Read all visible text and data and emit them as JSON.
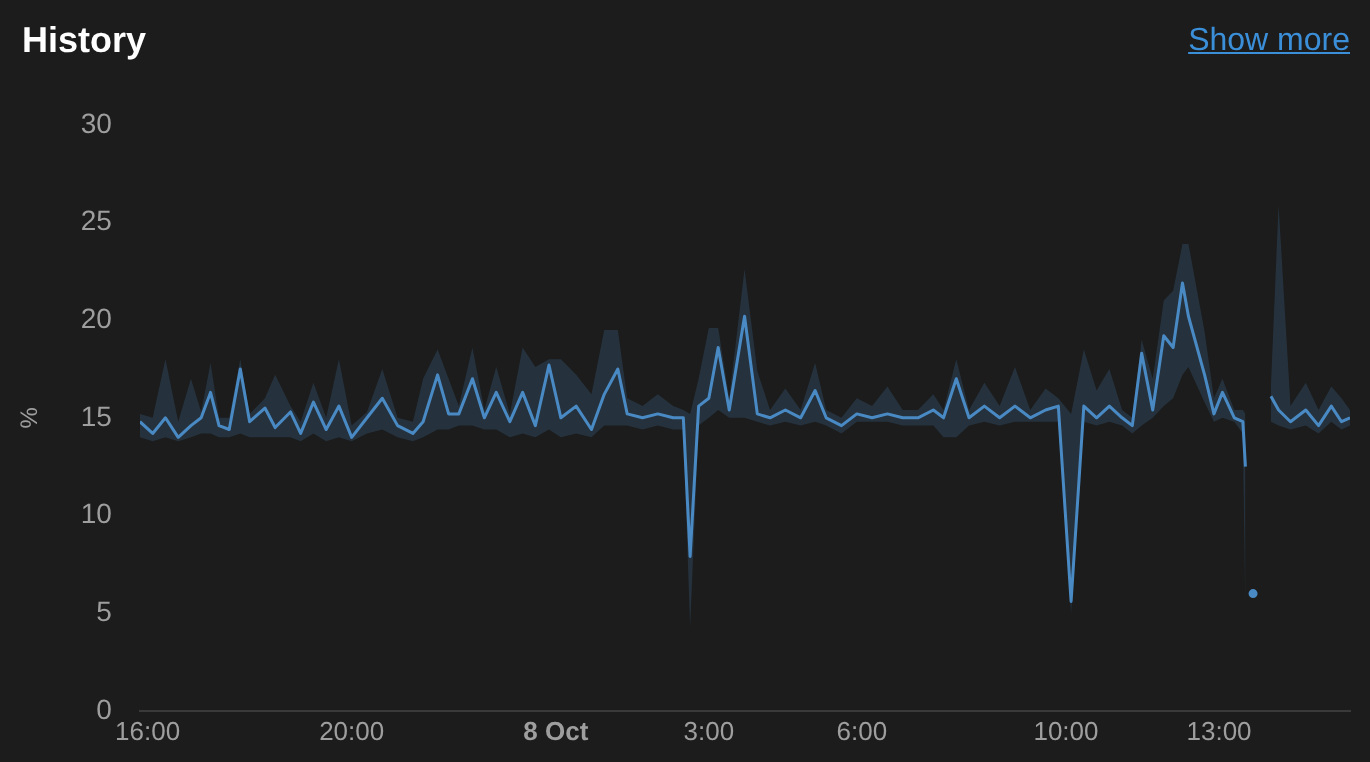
{
  "chart_data": {
    "type": "line",
    "title": "History",
    "ylabel": "%",
    "annotations": [
      "Show more"
    ],
    "x": [
      "--10-07T15:51",
      "--10-07T16:06",
      "--10-07T16:21",
      "--10-07T16:36",
      "--10-07T16:51",
      "--10-07T17:03",
      "--10-07T17:14",
      "--10-07T17:24",
      "--10-07T17:36",
      "--10-07T17:49",
      "--10-07T18:00",
      "--10-07T18:18",
      "--10-07T18:30",
      "--10-07T18:48",
      "--10-07T19:00",
      "--10-07T19:15",
      "--10-07T19:30",
      "--10-07T19:45",
      "--10-07T20:00",
      "--10-07T20:18",
      "--10-07T20:36",
      "--10-07T20:54",
      "--10-07T21:12",
      "--10-07T21:24",
      "--10-07T21:41",
      "--10-07T21:54",
      "--10-07T22:06",
      "--10-07T22:22",
      "--10-07T22:36",
      "--10-07T22:50",
      "--10-07T23:06",
      "--10-07T23:21",
      "--10-07T23:36",
      "--10-07T23:52",
      "--10-08T00:06",
      "--10-08T00:24",
      "--10-08T00:42",
      "--10-08T00:57",
      "--10-08T01:13",
      "--10-08T01:24",
      "--10-08T01:42",
      "--10-08T02:00",
      "--10-08T02:18",
      "--10-08T02:30",
      "--10-08T02:38",
      "--10-08T02:48",
      "--10-08T03:00",
      "--10-08T03:11",
      "--10-08T03:24",
      "--10-08T03:42",
      "--10-08T03:57",
      "--10-08T04:12",
      "--10-08T04:30",
      "--10-08T04:48",
      "--10-08T05:05",
      "--10-08T05:18",
      "--10-08T05:36",
      "--10-08T05:54",
      "--10-08T06:12",
      "--10-08T06:30",
      "--10-08T06:48",
      "--10-08T07:06",
      "--10-08T07:24",
      "--10-08T07:36",
      "--10-08T07:51",
      "--10-08T08:06",
      "--10-08T08:24",
      "--10-08T08:42",
      "--10-08T09:00",
      "--10-08T09:18",
      "--10-08T09:36",
      "--10-08T09:51",
      "--10-08T10:06",
      "--10-08T10:21",
      "--10-08T10:36",
      "--10-08T10:51",
      "--10-08T11:06",
      "--10-08T11:18",
      "--10-08T11:29",
      "--10-08T11:42",
      "--10-08T11:55",
      "--10-08T12:06",
      "--10-08T12:17",
      "--10-08T12:24",
      "--10-08T12:43",
      "--10-08T12:54",
      "--10-08T13:04",
      "--10-08T13:18",
      "--10-08T13:28",
      "--10-08T13:31",
      "--10-08T13:36",
      "--10-08T13:40"
    ],
    "series": [
      {
        "color": "#4a8ac4",
        "values": [
          14.8,
          14.2,
          15.0,
          14.0,
          14.6,
          15.0,
          16.3,
          14.6,
          14.4,
          17.5,
          14.8,
          15.5,
          14.5,
          15.3,
          14.2,
          15.8,
          14.4,
          15.6,
          14.0,
          15.0,
          16.0,
          14.6,
          14.2,
          14.8,
          17.2,
          15.2,
          15.2,
          17.0,
          15.0,
          16.3,
          14.8,
          16.3,
          14.6,
          17.7,
          15.0,
          15.6,
          14.4,
          16.2,
          17.5,
          15.2,
          15.0,
          15.2,
          15.0,
          15.0,
          7.9,
          15.6,
          16.0,
          18.6,
          15.4,
          20.2,
          15.2,
          15.0,
          15.4,
          15.0,
          16.4,
          15.0,
          14.6,
          15.2,
          15.0,
          15.2,
          15.0,
          15.0,
          15.4,
          15.0,
          17.0,
          15.0,
          15.6,
          15.0,
          15.6,
          15.0,
          15.4,
          15.6,
          5.6,
          15.6,
          15.0,
          15.6,
          15.0,
          14.6,
          18.3,
          15.4,
          19.2,
          18.6,
          21.9,
          20.2,
          17.2,
          15.2,
          16.3,
          15.0,
          14.8,
          12.5,
          null,
          6.0
        ],
        "lower": [
          14.0,
          13.8,
          14.0,
          13.8,
          14.0,
          14.2,
          14.2,
          14.0,
          14.0,
          14.2,
          14.0,
          14.0,
          14.0,
          14.0,
          13.8,
          14.2,
          13.8,
          14.0,
          13.8,
          14.2,
          14.4,
          14.0,
          13.8,
          14.0,
          14.4,
          14.4,
          14.6,
          14.6,
          14.4,
          14.4,
          14.0,
          14.2,
          14.0,
          14.4,
          14.0,
          14.2,
          14.0,
          14.6,
          14.6,
          14.6,
          14.4,
          14.6,
          14.4,
          14.4,
          4.3,
          14.6,
          15.0,
          15.4,
          15.0,
          15.0,
          14.8,
          14.6,
          14.8,
          14.6,
          14.8,
          14.6,
          14.2,
          14.8,
          14.8,
          14.8,
          14.6,
          14.6,
          14.6,
          14.0,
          14.0,
          14.6,
          14.8,
          14.6,
          14.8,
          14.8,
          14.8,
          14.8,
          5.0,
          14.8,
          14.6,
          14.8,
          14.6,
          14.2,
          14.6,
          15.0,
          15.6,
          16.0,
          17.2,
          17.6,
          15.8,
          14.8,
          15.0,
          14.8,
          14.2,
          5.0,
          null,
          null
        ],
        "upper": [
          15.2,
          15.0,
          18.0,
          14.8,
          17.0,
          15.3,
          17.8,
          15.0,
          15.0,
          18.0,
          15.2,
          16.0,
          17.2,
          15.6,
          14.8,
          16.8,
          15.0,
          18.0,
          14.6,
          15.3,
          17.5,
          15.0,
          14.8,
          17.0,
          18.5,
          17.0,
          15.6,
          18.6,
          15.4,
          17.6,
          15.2,
          18.6,
          17.6,
          18.0,
          18.0,
          17.2,
          16.2,
          19.5,
          19.5,
          16.0,
          15.6,
          16.2,
          15.6,
          15.4,
          15.2,
          17.0,
          19.6,
          19.6,
          16.0,
          22.6,
          17.4,
          15.4,
          16.5,
          15.4,
          17.8,
          15.4,
          15.0,
          16.0,
          15.6,
          16.6,
          15.4,
          15.4,
          16.2,
          15.4,
          18.0,
          15.4,
          16.8,
          15.6,
          17.6,
          15.4,
          16.5,
          16.0,
          15.2,
          18.5,
          16.4,
          17.5,
          15.4,
          15.0,
          19.0,
          17.0,
          21.0,
          21.5,
          23.9,
          23.9,
          19.4,
          16.0,
          17.0,
          15.4,
          15.4,
          15.2,
          null,
          null
        ]
      },
      {
        "color": "#4a8ac4",
        "x": [
          "--10-08T14:01",
          "--10-08T14:10",
          "--10-08T14:24",
          "--10-08T14:42",
          "--10-08T14:57",
          "--10-08T15:12",
          "--10-08T15:24",
          "--10-08T15:34"
        ],
        "values": [
          16.1,
          15.4,
          14.8,
          15.4,
          14.6,
          15.6,
          14.8,
          15.0
        ],
        "lower": [
          14.8,
          14.6,
          14.4,
          14.6,
          14.2,
          14.8,
          14.4,
          14.6
        ],
        "upper": [
          16.6,
          25.9,
          15.6,
          16.8,
          15.4,
          16.6,
          16.0,
          15.4
        ]
      }
    ],
    "xlim": [
      "--10-07T15:51",
      "--10-08T15:34"
    ],
    "xticks": [
      {
        "value": "--10-07T16:00",
        "label": "16:00"
      },
      {
        "value": "--10-07T20:00",
        "label": "20:00"
      },
      {
        "value": "--10-08T00:00",
        "label": "8 Oct"
      },
      {
        "value": "--10-08T03:00",
        "label": "3:00"
      },
      {
        "value": "--10-08T06:00",
        "label": "6:00"
      },
      {
        "value": "--10-08T10:00",
        "label": "10:00"
      },
      {
        "value": "--10-08T13:00",
        "label": "13:00"
      }
    ],
    "ylim": [
      0,
      30
    ],
    "yticks": [
      0,
      5,
      10,
      15,
      20,
      25,
      30
    ],
    "grid": false,
    "legend": false,
    "marker": "none",
    "line_style": "solid"
  }
}
